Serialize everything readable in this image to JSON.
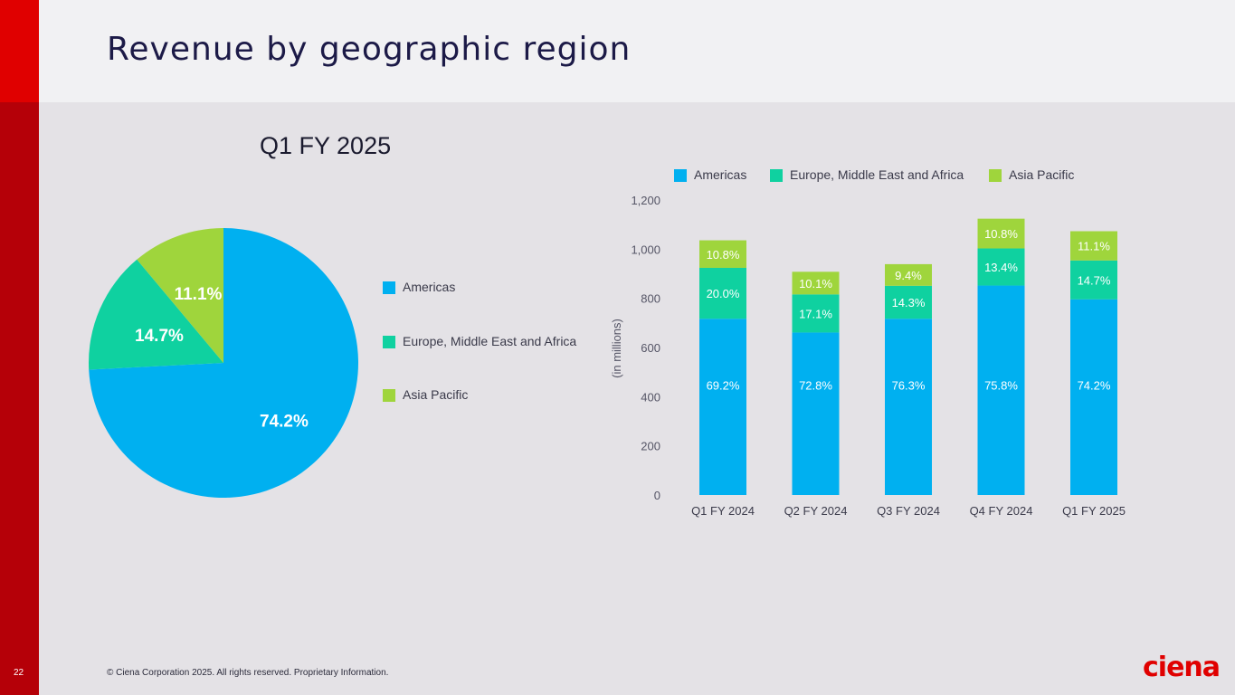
{
  "slide": {
    "title": "Revenue by geographic region",
    "page_number": "22",
    "copyright": "© Ciena Corporation 2025. All rights reserved. Proprietary Information.",
    "logo_text": "ciena"
  },
  "colors": {
    "americas": "#00b0f0",
    "emea": "#0fd1a0",
    "apac": "#9fd53c",
    "brand_red": "#e00000"
  },
  "chart_data": [
    {
      "type": "pie",
      "title": "Q1 FY 2025",
      "slices": [
        {
          "name": "Americas",
          "value": 74.2,
          "label": "74.2%"
        },
        {
          "name": "Europe, Middle East and Africa",
          "value": 14.7,
          "label": "14.7%"
        },
        {
          "name": "Asia Pacific",
          "value": 11.1,
          "label": "11.1%"
        }
      ],
      "legend": [
        "Americas",
        "Europe, Middle East and Africa",
        "Asia Pacific"
      ]
    },
    {
      "type": "bar",
      "stacked": true,
      "ylabel": "(in millions)",
      "ylim": [
        0,
        1200
      ],
      "yticks": [
        0,
        200,
        400,
        600,
        800,
        1000,
        1200
      ],
      "ytick_labels": [
        "0",
        "200",
        "400",
        "600",
        "800",
        "1,000",
        "1,200"
      ],
      "categories": [
        "Q1 FY 2024",
        "Q2 FY 2024",
        "Q3 FY 2024",
        "Q4 FY 2024",
        "Q1 FY 2025"
      ],
      "legend": [
        "Americas",
        "Europe, Middle East and Africa",
        "Asia Pacific"
      ],
      "series": [
        {
          "name": "Americas",
          "values": [
            717,
            661,
            717,
            852,
            796
          ],
          "labels": [
            "69.2%",
            "72.8%",
            "76.3%",
            "75.8%",
            "74.2%"
          ]
        },
        {
          "name": "Europe, Middle East and Africa",
          "values": [
            207,
            155,
            134,
            151,
            158
          ],
          "labels": [
            "20.0%",
            "17.1%",
            "14.3%",
            "13.4%",
            "14.7%"
          ]
        },
        {
          "name": "Asia Pacific",
          "values": [
            112,
            92,
            88,
            121,
            119
          ],
          "labels": [
            "10.8%",
            "10.1%",
            "9.4%",
            "10.8%",
            "11.1%"
          ]
        }
      ]
    }
  ]
}
